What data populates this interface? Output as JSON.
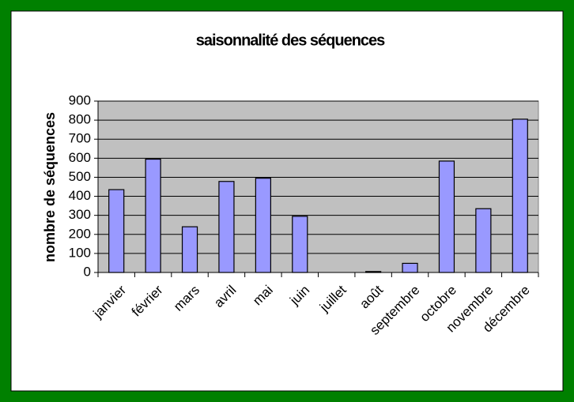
{
  "chart_data": {
    "type": "bar",
    "title": "saisonnalité des séquences",
    "y_label": "nombre de séquences",
    "categories": [
      "janvier",
      "février",
      "mars",
      "avril",
      "mai",
      "juin",
      "juillet",
      "août",
      "septembre",
      "octobre",
      "novembre",
      "décembre"
    ],
    "values": [
      435,
      595,
      240,
      478,
      495,
      295,
      0,
      5,
      48,
      585,
      335,
      805
    ],
    "color": "#9999ff",
    "ylim": [
      0,
      900
    ],
    "yticks": [
      0,
      100,
      200,
      300,
      400,
      500,
      600,
      700,
      800,
      900
    ],
    "grid": true
  }
}
